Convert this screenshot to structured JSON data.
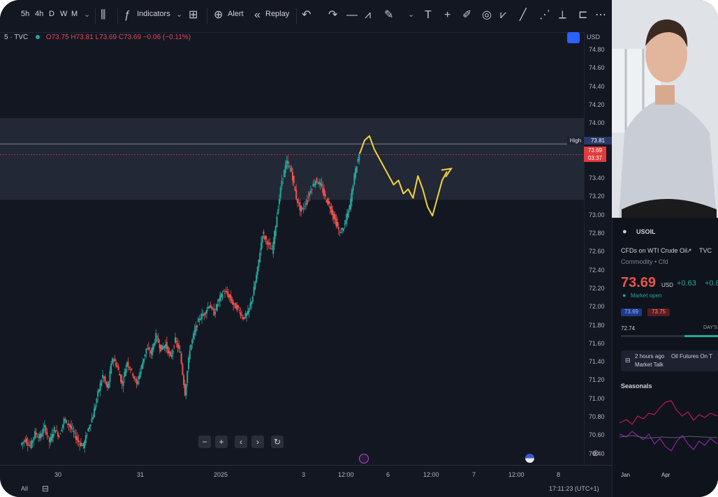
{
  "toolbar": {
    "timeframes": [
      "5h",
      "4h",
      "D",
      "W",
      "M"
    ],
    "indicators_label": "Indicators",
    "alert_label": "Alert",
    "replay_label": "Replay"
  },
  "legend": {
    "symbol": "5 · TVC",
    "ohlc": "O73.75 H73.81 L73.69 C73.69 −0.06 (−0.11%)"
  },
  "yaxis": {
    "currency": "USD",
    "labels": [
      "74.80",
      "74.60",
      "74.40",
      "74.20",
      "74.00",
      "73.80",
      "73.60",
      "73.40",
      "73.20",
      "73.00",
      "72.80",
      "72.60",
      "72.40",
      "72.20",
      "72.00",
      "71.80",
      "71.60",
      "71.40",
      "71.20",
      "71.00",
      "70.80",
      "70.60",
      "70.40"
    ],
    "high_tag": "High",
    "high_value": "73.81",
    "price_tag": "73.69",
    "countdown": "03:37"
  },
  "xaxis": {
    "labels": [
      "30",
      "31",
      "2025",
      "3",
      "12:00",
      "6",
      "12:00",
      "7",
      "12:00",
      "8"
    ],
    "clock": "17:11:23 (UTC+1)",
    "range_label": "All"
  },
  "zoom_controls": [
    "−",
    "+",
    "‹",
    "›",
    "↻"
  ],
  "symbol_panel": {
    "ticker": "USOIL",
    "description": "CFDs on WTI Crude Oil",
    "exchange": "TVC",
    "category": "Commodity • Cfd",
    "price": "73.69",
    "currency": "USD",
    "change": "+0.63",
    "change_pct": "+0.8",
    "market_status": "Market open",
    "bid": "73.69",
    "ask": "73.75",
    "low_label": "72.74",
    "range_label": "DAY'S",
    "news_time": "2 hours ago",
    "news_title": "Oil Futures On T",
    "news_source": "Market Talk",
    "seasonals_title": "Seasonals",
    "seasonals_months": [
      "Jan",
      "Apr"
    ]
  },
  "colors": {
    "background": "#131722",
    "up": "#26a69a",
    "down": "#ef5350",
    "annotation": "#f2d43a",
    "price_tag": "#e23b3b",
    "accent": "#2962ff"
  },
  "chart_data": {
    "type": "candlestick",
    "title": "",
    "xlabel": "",
    "ylabel": "",
    "ylim": [
      70.35,
      74.85
    ],
    "resistance_zone": [
      73.18,
      74.1
    ],
    "x_ticks": [
      "30",
      "31",
      "2025",
      "3",
      "12:00",
      "6",
      "12:00",
      "7",
      "12:00",
      "8"
    ],
    "close_path": [
      70.42,
      70.48,
      70.4,
      70.55,
      70.5,
      70.62,
      70.45,
      70.6,
      70.52,
      70.7,
      70.65,
      70.55,
      70.45,
      70.4,
      70.6,
      70.75,
      71.0,
      71.2,
      71.05,
      71.4,
      71.3,
      71.1,
      71.35,
      71.25,
      71.1,
      71.3,
      71.5,
      71.45,
      71.65,
      71.5,
      71.55,
      71.4,
      71.6,
      71.45,
      71.0,
      71.5,
      71.7,
      71.85,
      71.9,
      72.0,
      71.9,
      72.05,
      72.15,
      72.1,
      72.0,
      71.95,
      71.85,
      71.9,
      72.1,
      72.4,
      72.8,
      72.7,
      72.6,
      73.0,
      73.4,
      73.6,
      73.5,
      73.2,
      73.05,
      73.15,
      73.3,
      73.4,
      73.35,
      73.2,
      73.1,
      72.95,
      72.8,
      72.9,
      73.1,
      73.45,
      73.7
    ],
    "projection": [
      73.7,
      73.85,
      73.9,
      73.75,
      73.65,
      73.55,
      73.45,
      73.35,
      73.4,
      73.25,
      73.3,
      73.2,
      73.45,
      73.3,
      73.1,
      73.0,
      73.2,
      73.4,
      73.5
    ]
  }
}
